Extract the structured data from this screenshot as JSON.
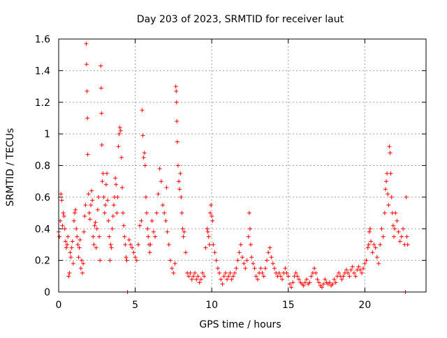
{
  "chart_data": {
    "type": "scatter",
    "title": "Day 203 of 2023, SRMTID for receiver laut",
    "xlabel": "GPS time / hours",
    "ylabel": "SRMTID / TECUs",
    "xlim": [
      0,
      24
    ],
    "ylim": [
      0,
      1.6
    ],
    "xticks": [
      0,
      5,
      10,
      15,
      20
    ],
    "xtick_labels": [
      "0",
      "5",
      "10",
      "15",
      "20"
    ],
    "yticks": [
      0,
      0.2,
      0.4,
      0.6,
      0.8,
      1.0,
      1.2,
      1.4,
      1.6
    ],
    "ytick_labels": [
      "0",
      "0.2",
      "0.4",
      "0.6",
      "0.8",
      "1",
      "1.2",
      "1.4",
      "1.6"
    ],
    "grid": true,
    "marker": "+",
    "color": "#ff0000",
    "series": [
      {
        "name": "SRMTID",
        "points": [
          [
            0.0,
            0.38
          ],
          [
            0.05,
            0.35
          ],
          [
            0.1,
            0.45
          ],
          [
            0.15,
            0.62
          ],
          [
            0.2,
            0.58
          ],
          [
            0.25,
            0.42
          ],
          [
            0.3,
            0.5
          ],
          [
            0.35,
            0.48
          ],
          [
            0.4,
            0.4
          ],
          [
            0.45,
            0.32
          ],
          [
            0.5,
            0.28
          ],
          [
            0.55,
            0.3
          ],
          [
            0.6,
            0.35
          ],
          [
            0.65,
            0.1
          ],
          [
            0.7,
            0.12
          ],
          [
            0.75,
            0.25
          ],
          [
            0.8,
            0.22
          ],
          [
            0.85,
            0.28
          ],
          [
            0.9,
            0.32
          ],
          [
            0.95,
            0.18
          ],
          [
            1.0,
            0.45
          ],
          [
            1.05,
            0.5
          ],
          [
            1.1,
            0.52
          ],
          [
            1.15,
            0.4
          ],
          [
            1.2,
            0.35
          ],
          [
            1.25,
            0.3
          ],
          [
            1.3,
            0.22
          ],
          [
            1.35,
            0.28
          ],
          [
            1.4,
            0.33
          ],
          [
            1.45,
            0.15
          ],
          [
            1.5,
            0.2
          ],
          [
            1.55,
            0.12
          ],
          [
            1.6,
            0.18
          ],
          [
            1.65,
            0.38
          ],
          [
            1.7,
            0.48
          ],
          [
            1.75,
            0.55
          ],
          [
            1.8,
            1.57
          ],
          [
            1.82,
            1.44
          ],
          [
            1.85,
            1.27
          ],
          [
            1.88,
            1.1
          ],
          [
            1.9,
            0.87
          ],
          [
            1.95,
            0.62
          ],
          [
            2.0,
            0.5
          ],
          [
            2.05,
            0.46
          ],
          [
            2.1,
            0.55
          ],
          [
            2.15,
            0.64
          ],
          [
            2.2,
            0.58
          ],
          [
            2.25,
            0.35
          ],
          [
            2.3,
            0.3
          ],
          [
            2.35,
            0.42
          ],
          [
            2.4,
            0.44
          ],
          [
            2.45,
            0.28
          ],
          [
            2.5,
            0.4
          ],
          [
            2.55,
            0.52
          ],
          [
            2.6,
            0.6
          ],
          [
            2.65,
            0.35
          ],
          [
            2.7,
            0.2
          ],
          [
            2.75,
            1.43
          ],
          [
            2.78,
            1.29
          ],
          [
            2.8,
            1.13
          ],
          [
            2.82,
            0.93
          ],
          [
            2.85,
            0.7
          ],
          [
            2.9,
            0.75
          ],
          [
            2.95,
            0.6
          ],
          [
            3.0,
            0.5
          ],
          [
            3.05,
            0.55
          ],
          [
            3.1,
            0.68
          ],
          [
            3.15,
            0.75
          ],
          [
            3.2,
            0.58
          ],
          [
            3.25,
            0.45
          ],
          [
            3.3,
            0.35
          ],
          [
            3.35,
            0.2
          ],
          [
            3.4,
            0.3
          ],
          [
            3.45,
            0.28
          ],
          [
            3.5,
            0.4
          ],
          [
            3.55,
            0.48
          ],
          [
            3.6,
            0.55
          ],
          [
            3.65,
            0.6
          ],
          [
            3.7,
            0.72
          ],
          [
            3.75,
            0.68
          ],
          [
            3.8,
            0.5
          ],
          [
            3.85,
            0.6
          ],
          [
            3.9,
            0.92
          ],
          [
            3.95,
            1.0
          ],
          [
            4.0,
            1.04
          ],
          [
            4.05,
            1.02
          ],
          [
            4.1,
            0.85
          ],
          [
            4.15,
            0.66
          ],
          [
            4.2,
            0.5
          ],
          [
            4.25,
            0.42
          ],
          [
            4.3,
            0.35
          ],
          [
            4.35,
            0.3
          ],
          [
            4.4,
            0.22
          ],
          [
            4.45,
            0.2
          ],
          [
            4.5,
            0.0
          ],
          [
            4.6,
            0.33
          ],
          [
            4.7,
            0.3
          ],
          [
            4.8,
            0.28
          ],
          [
            4.9,
            0.25
          ],
          [
            5.0,
            0.22
          ],
          [
            5.1,
            0.2
          ],
          [
            5.2,
            0.3
          ],
          [
            5.3,
            0.42
          ],
          [
            5.4,
            0.45
          ],
          [
            5.45,
            1.15
          ],
          [
            5.5,
            0.99
          ],
          [
            5.55,
            0.85
          ],
          [
            5.6,
            0.88
          ],
          [
            5.65,
            0.8
          ],
          [
            5.7,
            0.6
          ],
          [
            5.75,
            0.5
          ],
          [
            5.8,
            0.4
          ],
          [
            5.85,
            0.35
          ],
          [
            5.9,
            0.3
          ],
          [
            5.95,
            0.25
          ],
          [
            6.0,
            0.3
          ],
          [
            6.1,
            0.45
          ],
          [
            6.2,
            0.38
          ],
          [
            6.3,
            0.35
          ],
          [
            6.4,
            0.5
          ],
          [
            6.5,
            0.62
          ],
          [
            6.6,
            0.78
          ],
          [
            6.7,
            0.7
          ],
          [
            6.8,
            0.55
          ],
          [
            6.9,
            0.5
          ],
          [
            7.0,
            0.45
          ],
          [
            7.05,
            0.66
          ],
          [
            7.1,
            0.38
          ],
          [
            7.2,
            0.3
          ],
          [
            7.3,
            0.2
          ],
          [
            7.4,
            0.15
          ],
          [
            7.5,
            0.12
          ],
          [
            7.6,
            0.18
          ],
          [
            7.65,
            1.3
          ],
          [
            7.68,
            1.27
          ],
          [
            7.7,
            1.2
          ],
          [
            7.72,
            1.08
          ],
          [
            7.75,
            0.95
          ],
          [
            7.8,
            0.8
          ],
          [
            7.85,
            0.7
          ],
          [
            7.9,
            0.65
          ],
          [
            7.95,
            0.75
          ],
          [
            8.0,
            0.6
          ],
          [
            8.05,
            0.5
          ],
          [
            8.1,
            0.4
          ],
          [
            8.15,
            0.35
          ],
          [
            8.2,
            0.38
          ],
          [
            8.3,
            0.25
          ],
          [
            8.4,
            0.12
          ],
          [
            8.5,
            0.1
          ],
          [
            8.6,
            0.12
          ],
          [
            8.7,
            0.08
          ],
          [
            8.8,
            0.1
          ],
          [
            8.9,
            0.12
          ],
          [
            9.0,
            0.08
          ],
          [
            9.1,
            0.1
          ],
          [
            9.2,
            0.06
          ],
          [
            9.3,
            0.08
          ],
          [
            9.4,
            0.12
          ],
          [
            9.5,
            0.1
          ],
          [
            9.6,
            0.28
          ],
          [
            9.7,
            0.4
          ],
          [
            9.75,
            0.38
          ],
          [
            9.8,
            0.35
          ],
          [
            9.85,
            0.3
          ],
          [
            9.9,
            0.5
          ],
          [
            9.95,
            0.55
          ],
          [
            10.0,
            0.48
          ],
          [
            10.05,
            0.45
          ],
          [
            10.1,
            0.3
          ],
          [
            10.2,
            0.25
          ],
          [
            10.3,
            0.2
          ],
          [
            10.4,
            0.15
          ],
          [
            10.5,
            0.12
          ],
          [
            10.6,
            0.08
          ],
          [
            10.7,
            0.05
          ],
          [
            10.8,
            0.1
          ],
          [
            10.9,
            0.12
          ],
          [
            11.0,
            0.08
          ],
          [
            11.1,
            0.1
          ],
          [
            11.2,
            0.12
          ],
          [
            11.3,
            0.08
          ],
          [
            11.4,
            0.1
          ],
          [
            11.5,
            0.12
          ],
          [
            11.6,
            0.15
          ],
          [
            11.7,
            0.2
          ],
          [
            11.8,
            0.25
          ],
          [
            11.9,
            0.3
          ],
          [
            12.0,
            0.22
          ],
          [
            12.1,
            0.18
          ],
          [
            12.2,
            0.15
          ],
          [
            12.3,
            0.2
          ],
          [
            12.4,
            0.35
          ],
          [
            12.45,
            0.5
          ],
          [
            12.5,
            0.4
          ],
          [
            12.55,
            0.3
          ],
          [
            12.6,
            0.22
          ],
          [
            12.7,
            0.18
          ],
          [
            12.8,
            0.15
          ],
          [
            12.9,
            0.1
          ],
          [
            13.0,
            0.08
          ],
          [
            13.1,
            0.12
          ],
          [
            13.2,
            0.15
          ],
          [
            13.3,
            0.12
          ],
          [
            13.4,
            0.1
          ],
          [
            13.5,
            0.15
          ],
          [
            13.6,
            0.2
          ],
          [
            13.7,
            0.25
          ],
          [
            13.8,
            0.28
          ],
          [
            13.9,
            0.22
          ],
          [
            14.0,
            0.18
          ],
          [
            14.1,
            0.15
          ],
          [
            14.2,
            0.12
          ],
          [
            14.3,
            0.1
          ],
          [
            14.4,
            0.12
          ],
          [
            14.5,
            0.1
          ],
          [
            14.6,
            0.08
          ],
          [
            14.7,
            0.12
          ],
          [
            14.8,
            0.15
          ],
          [
            14.9,
            0.12
          ],
          [
            15.0,
            0.1
          ],
          [
            15.1,
            0.05
          ],
          [
            15.2,
            0.03
          ],
          [
            15.3,
            0.06
          ],
          [
            15.4,
            0.1
          ],
          [
            15.5,
            0.12
          ],
          [
            15.6,
            0.1
          ],
          [
            15.7,
            0.08
          ],
          [
            15.8,
            0.06
          ],
          [
            15.9,
            0.05
          ],
          [
            16.0,
            0.04
          ],
          [
            16.1,
            0.06
          ],
          [
            16.2,
            0.08
          ],
          [
            16.3,
            0.05
          ],
          [
            16.4,
            0.06
          ],
          [
            16.5,
            0.1
          ],
          [
            16.6,
            0.12
          ],
          [
            16.7,
            0.15
          ],
          [
            16.8,
            0.12
          ],
          [
            16.9,
            0.08
          ],
          [
            17.0,
            0.06
          ],
          [
            17.1,
            0.04
          ],
          [
            17.2,
            0.03
          ],
          [
            17.3,
            0.05
          ],
          [
            17.4,
            0.08
          ],
          [
            17.5,
            0.06
          ],
          [
            17.6,
            0.05
          ],
          [
            17.7,
            0.06
          ],
          [
            17.8,
            0.04
          ],
          [
            17.9,
            0.05
          ],
          [
            18.0,
            0.08
          ],
          [
            18.1,
            0.06
          ],
          [
            18.2,
            0.1
          ],
          [
            18.3,
            0.12
          ],
          [
            18.4,
            0.1
          ],
          [
            18.5,
            0.08
          ],
          [
            18.6,
            0.1
          ],
          [
            18.7,
            0.12
          ],
          [
            18.8,
            0.14
          ],
          [
            18.9,
            0.12
          ],
          [
            19.0,
            0.1
          ],
          [
            19.1,
            0.14
          ],
          [
            19.2,
            0.16
          ],
          [
            19.3,
            0.12
          ],
          [
            19.4,
            0.1
          ],
          [
            19.5,
            0.14
          ],
          [
            19.6,
            0.16
          ],
          [
            19.7,
            0.14
          ],
          [
            19.8,
            0.12
          ],
          [
            19.9,
            0.15
          ],
          [
            20.0,
            0.18
          ],
          [
            20.1,
            0.2
          ],
          [
            20.2,
            0.28
          ],
          [
            20.25,
            0.3
          ],
          [
            20.3,
            0.38
          ],
          [
            20.35,
            0.4
          ],
          [
            20.4,
            0.32
          ],
          [
            20.5,
            0.25
          ],
          [
            20.6,
            0.3
          ],
          [
            20.7,
            0.28
          ],
          [
            20.8,
            0.22
          ],
          [
            20.9,
            0.18
          ],
          [
            21.0,
            0.3
          ],
          [
            21.1,
            0.4
          ],
          [
            21.2,
            0.35
          ],
          [
            21.3,
            0.5
          ],
          [
            21.35,
            0.65
          ],
          [
            21.4,
            0.7
          ],
          [
            21.45,
            0.75
          ],
          [
            21.5,
            0.62
          ],
          [
            21.55,
            0.55
          ],
          [
            21.6,
            0.92
          ],
          [
            21.65,
            0.88
          ],
          [
            21.7,
            0.75
          ],
          [
            21.75,
            0.6
          ],
          [
            21.8,
            0.5
          ],
          [
            21.85,
            0.42
          ],
          [
            21.9,
            0.35
          ],
          [
            21.95,
            0.4
          ],
          [
            22.0,
            0.5
          ],
          [
            22.1,
            0.45
          ],
          [
            22.2,
            0.38
          ],
          [
            22.3,
            0.32
          ],
          [
            22.4,
            0.35
          ],
          [
            22.5,
            0.4
          ],
          [
            22.6,
            0.3
          ],
          [
            22.65,
            0.0
          ],
          [
            22.7,
            0.6
          ],
          [
            22.75,
            0.35
          ],
          [
            22.8,
            0.3
          ]
        ]
      }
    ]
  }
}
